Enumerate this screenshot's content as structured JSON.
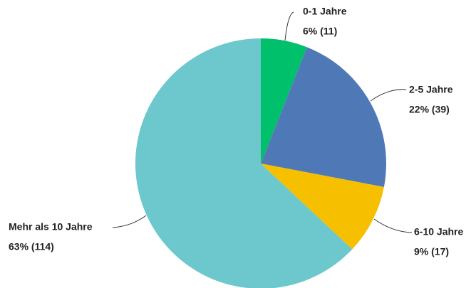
{
  "chart_data": {
    "type": "pie",
    "categories": [
      "0-1 Jahre",
      "2-5 Jahre",
      "6-10 Jahre",
      "Mehr als 10 Jahre"
    ],
    "values": [
      6,
      22,
      9,
      63
    ],
    "value_labels": [
      "6% (11)",
      "22% (39)",
      "9% (17)",
      "63% (114)"
    ],
    "colors": [
      "#00c06b",
      "#4f79b6",
      "#f6bf00",
      "#6cc8cc"
    ]
  }
}
